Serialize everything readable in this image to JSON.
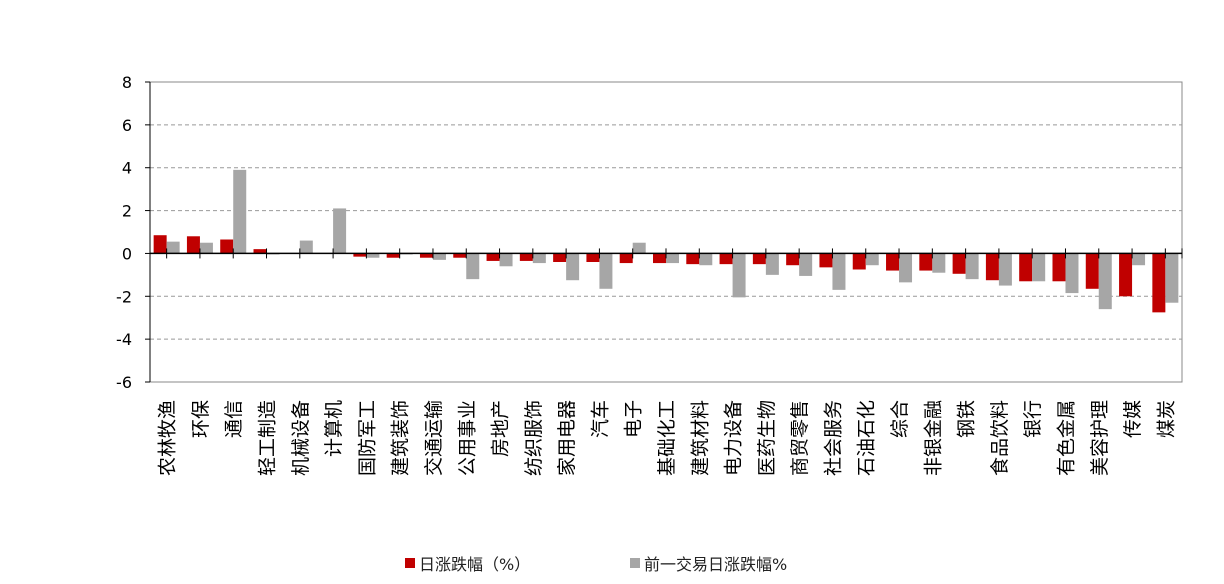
{
  "chart_data": {
    "type": "bar",
    "title": "",
    "xlabel": "",
    "ylabel": "",
    "ylim": [
      -6,
      8
    ],
    "yticks": [
      "8",
      "6",
      "4",
      "2",
      "0",
      "-2",
      "-4",
      "-6"
    ],
    "grid": true,
    "legend_position": "bottom",
    "categories": [
      "农林牧渔",
      "环保",
      "通信",
      "轻工制造",
      "机械设备",
      "计算机",
      "国防军工",
      "建筑装饰",
      "交通运输",
      "公用事业",
      "房地产",
      "纺织服饰",
      "家用电器",
      "汽车",
      "电子",
      "基础化工",
      "建筑材料",
      "电力设备",
      "医药生物",
      "商贸零售",
      "社会服务",
      "石油石化",
      "综合",
      "非银金融",
      "钢铁",
      "食品饮料",
      "银行",
      "有色金属",
      "美容护理",
      "传媒",
      "煤炭"
    ],
    "series": [
      {
        "name": "日涨跌幅（%）",
        "color": "#c00000",
        "values": [
          0.85,
          0.8,
          0.65,
          0.2,
          0,
          0,
          -0.15,
          -0.2,
          -0.2,
          -0.2,
          -0.35,
          -0.35,
          -0.4,
          -0.4,
          -0.45,
          -0.45,
          -0.5,
          -0.5,
          -0.5,
          -0.55,
          -0.65,
          -0.75,
          -0.8,
          -0.8,
          -0.95,
          -1.25,
          -1.3,
          -1.3,
          -1.65,
          -2.0,
          -2.75
        ]
      },
      {
        "name": "前一交易日涨跌幅%",
        "color": "#a6a6a6",
        "values": [
          0.55,
          0.5,
          3.9,
          -0.05,
          0.6,
          2.1,
          -0.2,
          -0.05,
          -0.3,
          -1.2,
          -0.6,
          -0.45,
          -1.25,
          -1.65,
          0.5,
          -0.45,
          -0.55,
          -2.05,
          -1.0,
          -1.05,
          -1.7,
          -0.55,
          -1.35,
          -0.9,
          -1.2,
          -1.5,
          -1.3,
          -1.85,
          -2.6,
          -0.55,
          -2.3
        ]
      }
    ]
  }
}
